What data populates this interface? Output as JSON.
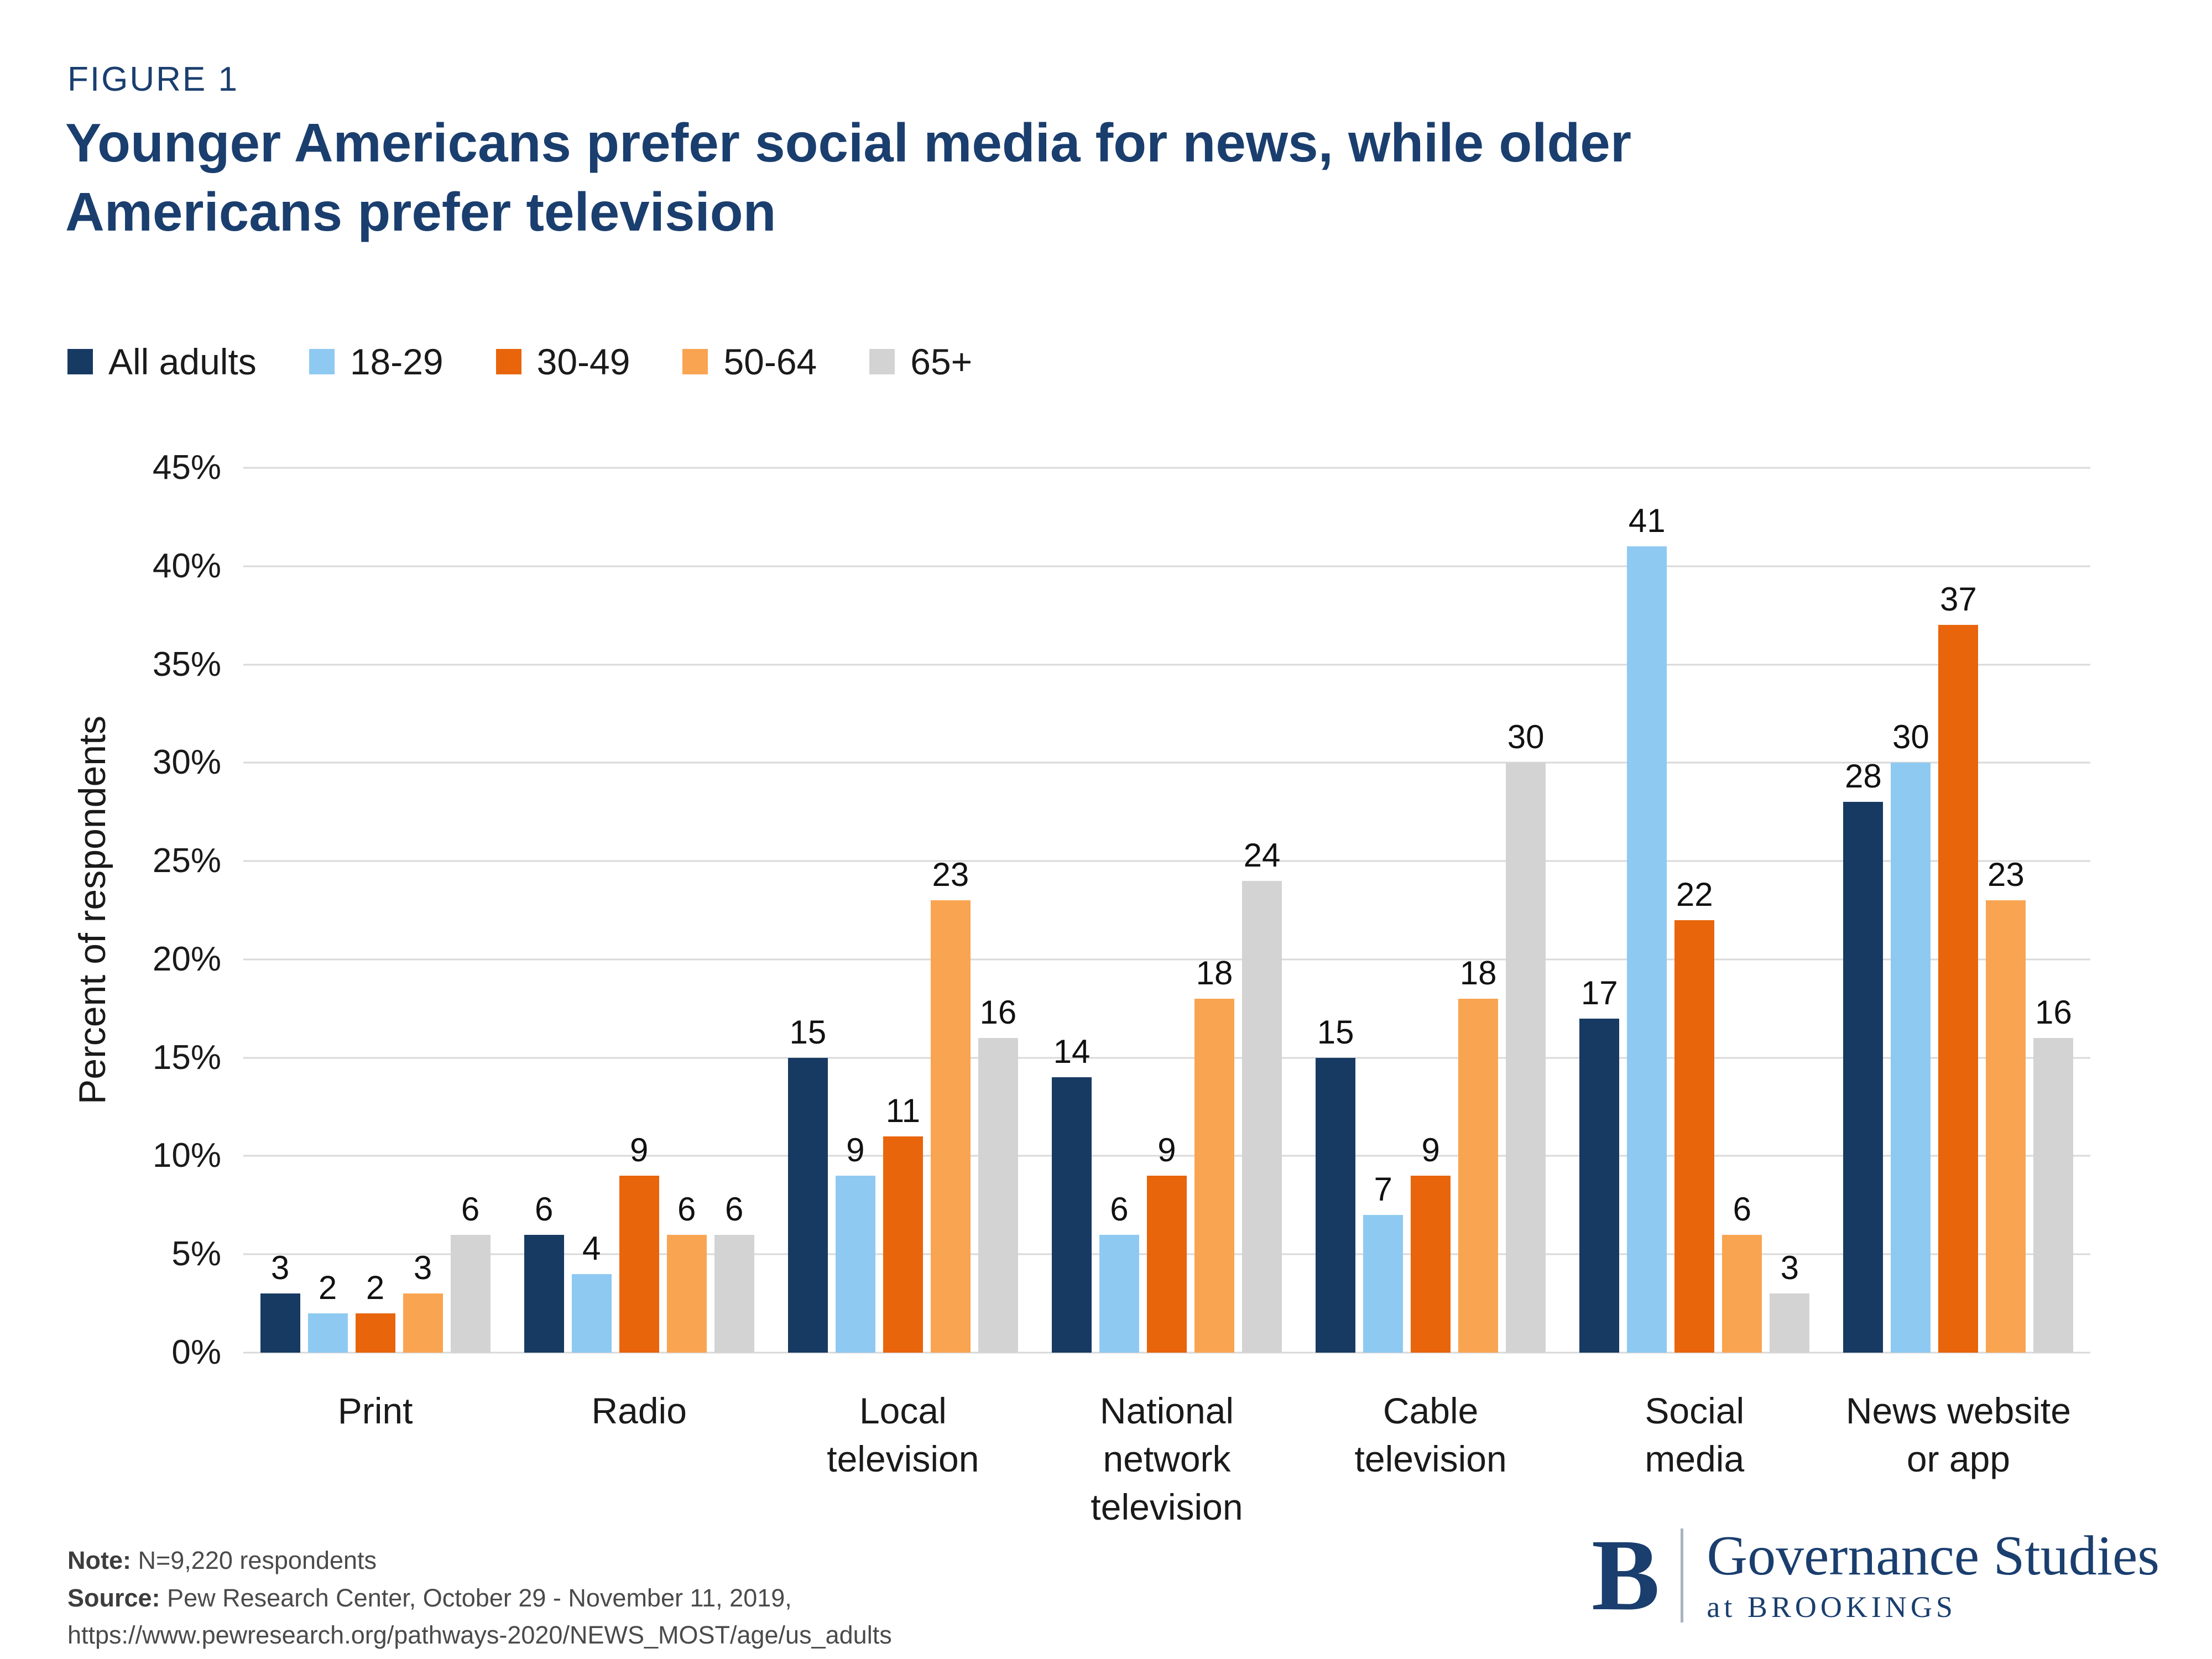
{
  "figure_label": "FIGURE 1",
  "chart_data": {
    "type": "bar",
    "title": "Younger Americans prefer social media for news, while older\nAmericans prefer television",
    "ylabel": "Percent of respondents",
    "ylim": [
      0,
      45
    ],
    "grid": "horizontal",
    "legend_position": "top",
    "yticks": [
      {
        "v": 0,
        "label": "0%"
      },
      {
        "v": 5,
        "label": "5%"
      },
      {
        "v": 10,
        "label": "10%"
      },
      {
        "v": 15,
        "label": "15%"
      },
      {
        "v": 20,
        "label": "20%"
      },
      {
        "v": 25,
        "label": "25%"
      },
      {
        "v": 30,
        "label": "30%"
      },
      {
        "v": 35,
        "label": "35%"
      },
      {
        "v": 40,
        "label": "40%"
      },
      {
        "v": 45,
        "label": "45%"
      }
    ],
    "categories": [
      "Print",
      "Radio",
      "Local\ntelevision",
      "National\nnetwork\ntelevision",
      "Cable\ntelevision",
      "Social\nmedia",
      "News website\nor app"
    ],
    "series": [
      {
        "name": "All adults",
        "color": "#173a63",
        "values": [
          3,
          6,
          15,
          14,
          15,
          17,
          28
        ]
      },
      {
        "name": "18-29",
        "color": "#8ec9f2",
        "values": [
          2,
          4,
          9,
          6,
          7,
          41,
          30
        ]
      },
      {
        "name": "30-49",
        "color": "#e8650c",
        "values": [
          2,
          9,
          11,
          9,
          9,
          22,
          37
        ]
      },
      {
        "name": "50-64",
        "color": "#f9a451",
        "values": [
          3,
          6,
          23,
          18,
          18,
          6,
          23
        ]
      },
      {
        "name": "65+",
        "color": "#d3d3d3",
        "values": [
          6,
          6,
          16,
          24,
          30,
          3,
          16
        ]
      }
    ]
  },
  "footer": {
    "note_label": "Note:",
    "note_text": " N=9,220 respondents",
    "source_label": "Source:",
    "source_text": " Pew Research Center, October 29 - November 11, 2019,",
    "url": "https://www.pewresearch.org/pathways-2020/NEWS_MOST/age/us_adults"
  },
  "logo": {
    "mark": "B",
    "name": "Governance Studies",
    "sub": "at BROOKINGS"
  }
}
